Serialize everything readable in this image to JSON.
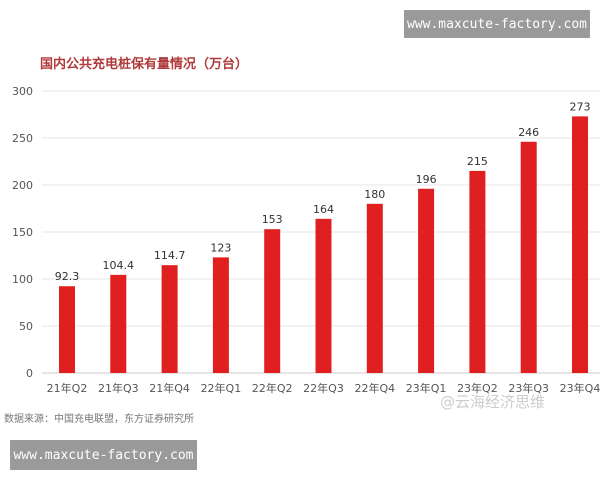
{
  "watermarks": {
    "top": "www.maxcute-factory.com",
    "bottom": "www.maxcute-factory.com",
    "corner": "@云海经济思维"
  },
  "source": "数据来源：中国充电联盟，东方证券研究所",
  "chart_data": {
    "type": "bar",
    "title": "国内公共充电桩保有量情况（万台）",
    "categories": [
      "21年Q2",
      "21年Q3",
      "21年Q4",
      "22年Q1",
      "22年Q2",
      "22年Q3",
      "22年Q4",
      "23年Q1",
      "23年Q2",
      "23年Q3",
      "23年Q4"
    ],
    "values": [
      92.3,
      104.4,
      114.7,
      123,
      153,
      164,
      180,
      196,
      215,
      246,
      273
    ],
    "data_labels": [
      "92.3",
      "104.4",
      "114.7",
      "123",
      "153",
      "164",
      "180",
      "196",
      "215",
      "246",
      "273"
    ],
    "yticks": [
      "0",
      "50",
      "100",
      "150",
      "200",
      "250",
      "300"
    ],
    "ylim": [
      0,
      300
    ],
    "grid": true,
    "bar_color": "#e02020"
  }
}
